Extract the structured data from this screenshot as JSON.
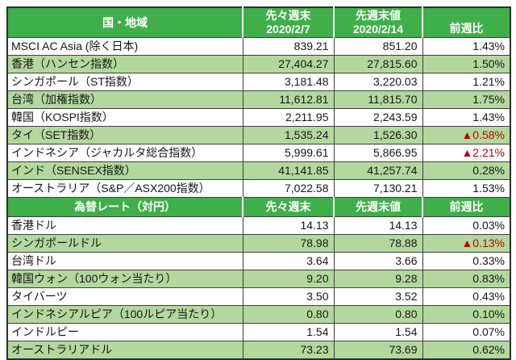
{
  "colors": {
    "header_green": "#3FAF4A",
    "row_alt_green": "#B3D89E",
    "row_white": "#FFFFFF",
    "negative_red": "#C00000",
    "header_text": "#FFFFFF",
    "body_text": "#161616"
  },
  "indices_section": {
    "header": {
      "region": "国・地域",
      "prev_line1": "先々週末",
      "prev_line2": "2020/2/7",
      "last_line1": "先週末値",
      "last_line2": "2020/2/14",
      "change": "前週比"
    },
    "rows": [
      {
        "label": "MSCI AC Asia (除く日本)",
        "prev": "839.21",
        "last": "851.20",
        "change": "1.43%"
      },
      {
        "label": "香港（ハンセン指数）",
        "prev": "27,404.27",
        "last": "27,815.60",
        "change": "1.50%"
      },
      {
        "label": "シンガポール（ST指数）",
        "prev": "3,181.48",
        "last": "3,220.03",
        "change": "1.21%"
      },
      {
        "label": "台湾（加権指数）",
        "prev": "11,612.81",
        "last": "11,815.70",
        "change": "1.75%"
      },
      {
        "label": "韓国（KOSPI指数）",
        "prev": "2,211.95",
        "last": "2,243.59",
        "change": "1.43%"
      },
      {
        "label": "タイ（SET指数）",
        "prev": "1,535.24",
        "last": "1,526.30",
        "change": "▲0.58%"
      },
      {
        "label": "インドネシア（ジャカルタ総合指数）",
        "prev": "5,999.61",
        "last": "5,866.95",
        "change": "▲2.21%"
      },
      {
        "label": "インド（SENSEX指数）",
        "prev": "41,141.85",
        "last": "41,257.74",
        "change": "0.28%"
      },
      {
        "label": "オーストラリア（S&P／ASX200指数）",
        "prev": "7,022.58",
        "last": "7,130.21",
        "change": "1.53%"
      }
    ]
  },
  "fx_section": {
    "header": {
      "title": "為替レート（対円）",
      "prev": "先々週末",
      "last": "先週末値",
      "change": "前週比"
    },
    "rows": [
      {
        "label": "香港ドル",
        "prev": "14.13",
        "last": "14.13",
        "change": "0.03%"
      },
      {
        "label": "シンガポールドル",
        "prev": "78.98",
        "last": "78.88",
        "change": "▲0.13%"
      },
      {
        "label": "台湾ドル",
        "prev": "3.64",
        "last": "3.66",
        "change": "0.33%"
      },
      {
        "label": "韓国ウォン（100ウォン当たり）",
        "prev": "9.20",
        "last": "9.28",
        "change": "0.83%"
      },
      {
        "label": "タイバーツ",
        "prev": "3.50",
        "last": "3.52",
        "change": "0.43%"
      },
      {
        "label": "インドネシアルピア（100ルピア当たり）",
        "prev": "0.80",
        "last": "0.80",
        "change": "0.10%"
      },
      {
        "label": "インドルピー",
        "prev": "1.54",
        "last": "1.54",
        "change": "0.07%"
      },
      {
        "label": "オーストラリアドル",
        "prev": "73.23",
        "last": "73.69",
        "change": "0.62%"
      }
    ]
  }
}
